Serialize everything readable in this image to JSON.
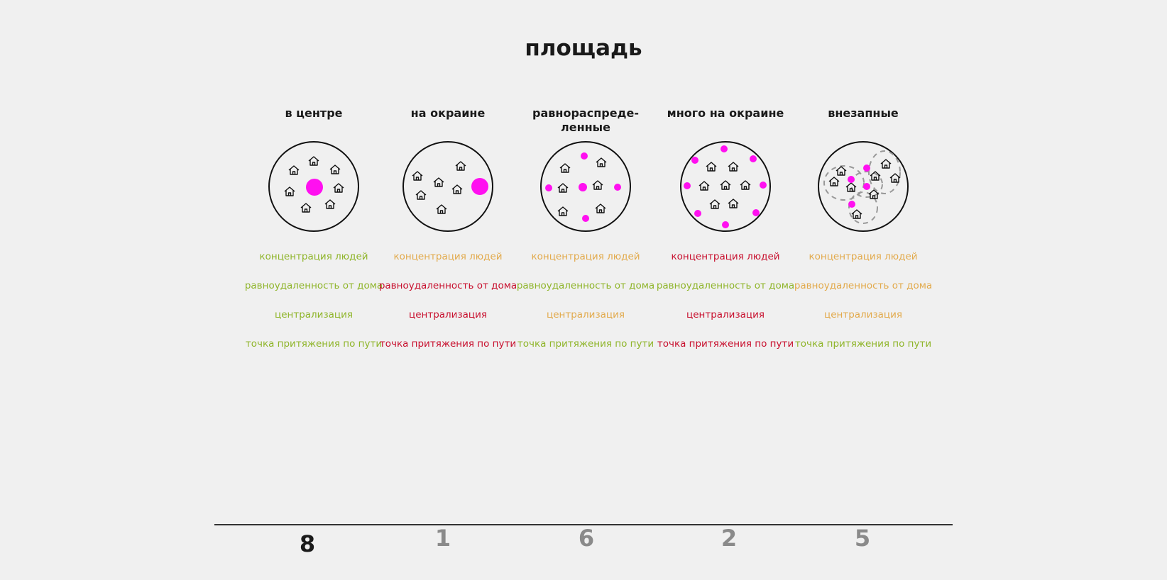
{
  "title": "площадь",
  "colors": {
    "good": "#8fb52a",
    "medium": "#e2aa4c",
    "bad": "#c8102e",
    "magenta": "#ff10f0",
    "score_top": "#1a1a1a",
    "score_other": "#8a8a8a"
  },
  "criteria_labels": [
    "концентрация людей",
    "равноудаленность от дома",
    "централизация",
    "точка притяжения по пути"
  ],
  "columns": [
    {
      "heading": "в центре",
      "diagram": "center",
      "criteria": [
        {
          "label": "концентрация людей",
          "rating": "good"
        },
        {
          "label": "равноудаленность от дома",
          "rating": "good"
        },
        {
          "label": "централизация",
          "rating": "good"
        },
        {
          "label": "точка притяжения по пути",
          "rating": "good"
        }
      ],
      "score": "8"
    },
    {
      "heading": "на окраине",
      "diagram": "edge",
      "criteria": [
        {
          "label": "концентрация людей",
          "rating": "medium"
        },
        {
          "label": "равноудаленность от дома",
          "rating": "bad"
        },
        {
          "label": "централизация",
          "rating": "bad"
        },
        {
          "label": "точка притяжения по пути",
          "rating": "bad"
        }
      ],
      "score": "1"
    },
    {
      "heading": "равнораспреде-ленные",
      "diagram": "distributed",
      "criteria": [
        {
          "label": "концентрация людей",
          "rating": "medium"
        },
        {
          "label": "равноудаленность от дома",
          "rating": "good"
        },
        {
          "label": "централизация",
          "rating": "medium"
        },
        {
          "label": "точка притяжения по пути",
          "rating": "good"
        }
      ],
      "score": "6"
    },
    {
      "heading": "много на окраине",
      "diagram": "many-edge",
      "criteria": [
        {
          "label": "концентрация людей",
          "rating": "bad"
        },
        {
          "label": "равноудаленность от дома",
          "rating": "good"
        },
        {
          "label": "централизация",
          "rating": "bad"
        },
        {
          "label": "точка притяжения по пути",
          "rating": "bad"
        }
      ],
      "score": "2"
    },
    {
      "heading": "внезапные",
      "diagram": "sudden",
      "criteria": [
        {
          "label": "концентрация людей",
          "rating": "medium"
        },
        {
          "label": "равноудаленность от дома",
          "rating": "medium"
        },
        {
          "label": "централизация",
          "rating": "medium"
        },
        {
          "label": "точка притяжения по пути",
          "rating": "good"
        }
      ],
      "score": "5"
    }
  ]
}
